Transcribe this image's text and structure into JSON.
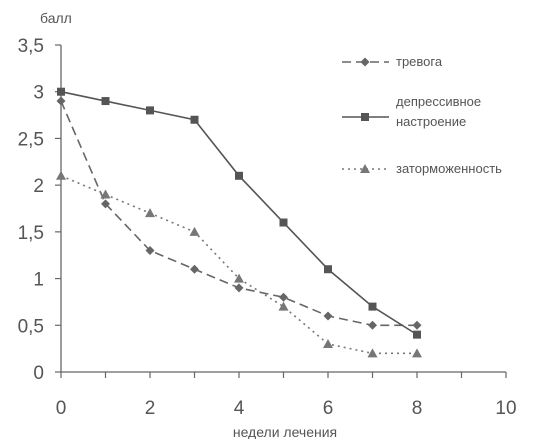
{
  "chart_data": {
    "type": "line",
    "title": "",
    "ylabel": "балл",
    "xlabel": "недели лечения",
    "xlim": [
      0,
      10
    ],
    "ylim": [
      0,
      3.5
    ],
    "xticks": [
      0,
      2,
      4,
      6,
      8,
      10
    ],
    "yticks": [
      0,
      0.5,
      1,
      1.5,
      2,
      2.5,
      3,
      3.5
    ],
    "xtick_labels": [
      "0",
      "2",
      "4",
      "6",
      "8",
      "10"
    ],
    "ytick_labels": [
      "0",
      "0,5",
      "1",
      "1,5",
      "2",
      "2,5",
      "3",
      "3,5"
    ],
    "grid": false,
    "legend_position": "right",
    "x": [
      0,
      1,
      2,
      3,
      4,
      5,
      6,
      7,
      8
    ],
    "series": [
      {
        "name": "тревога",
        "values": [
          2.9,
          1.8,
          1.3,
          1.1,
          0.9,
          0.8,
          0.6,
          0.5,
          0.5
        ],
        "line_style": "dashed",
        "marker": "diamond",
        "color": "#666666"
      },
      {
        "name": "депрессивное настроение",
        "name_lines": [
          "депрессивное",
          "настроение"
        ],
        "values": [
          3.0,
          2.9,
          2.8,
          2.7,
          2.1,
          1.6,
          1.1,
          0.7,
          0.4
        ],
        "line_style": "solid",
        "marker": "square",
        "color": "#555555"
      },
      {
        "name": "заторможенность",
        "values": [
          2.1,
          1.9,
          1.7,
          1.5,
          1.0,
          0.7,
          0.3,
          0.2,
          0.2
        ],
        "line_style": "dotted",
        "marker": "triangle",
        "color": "#777777"
      }
    ]
  }
}
